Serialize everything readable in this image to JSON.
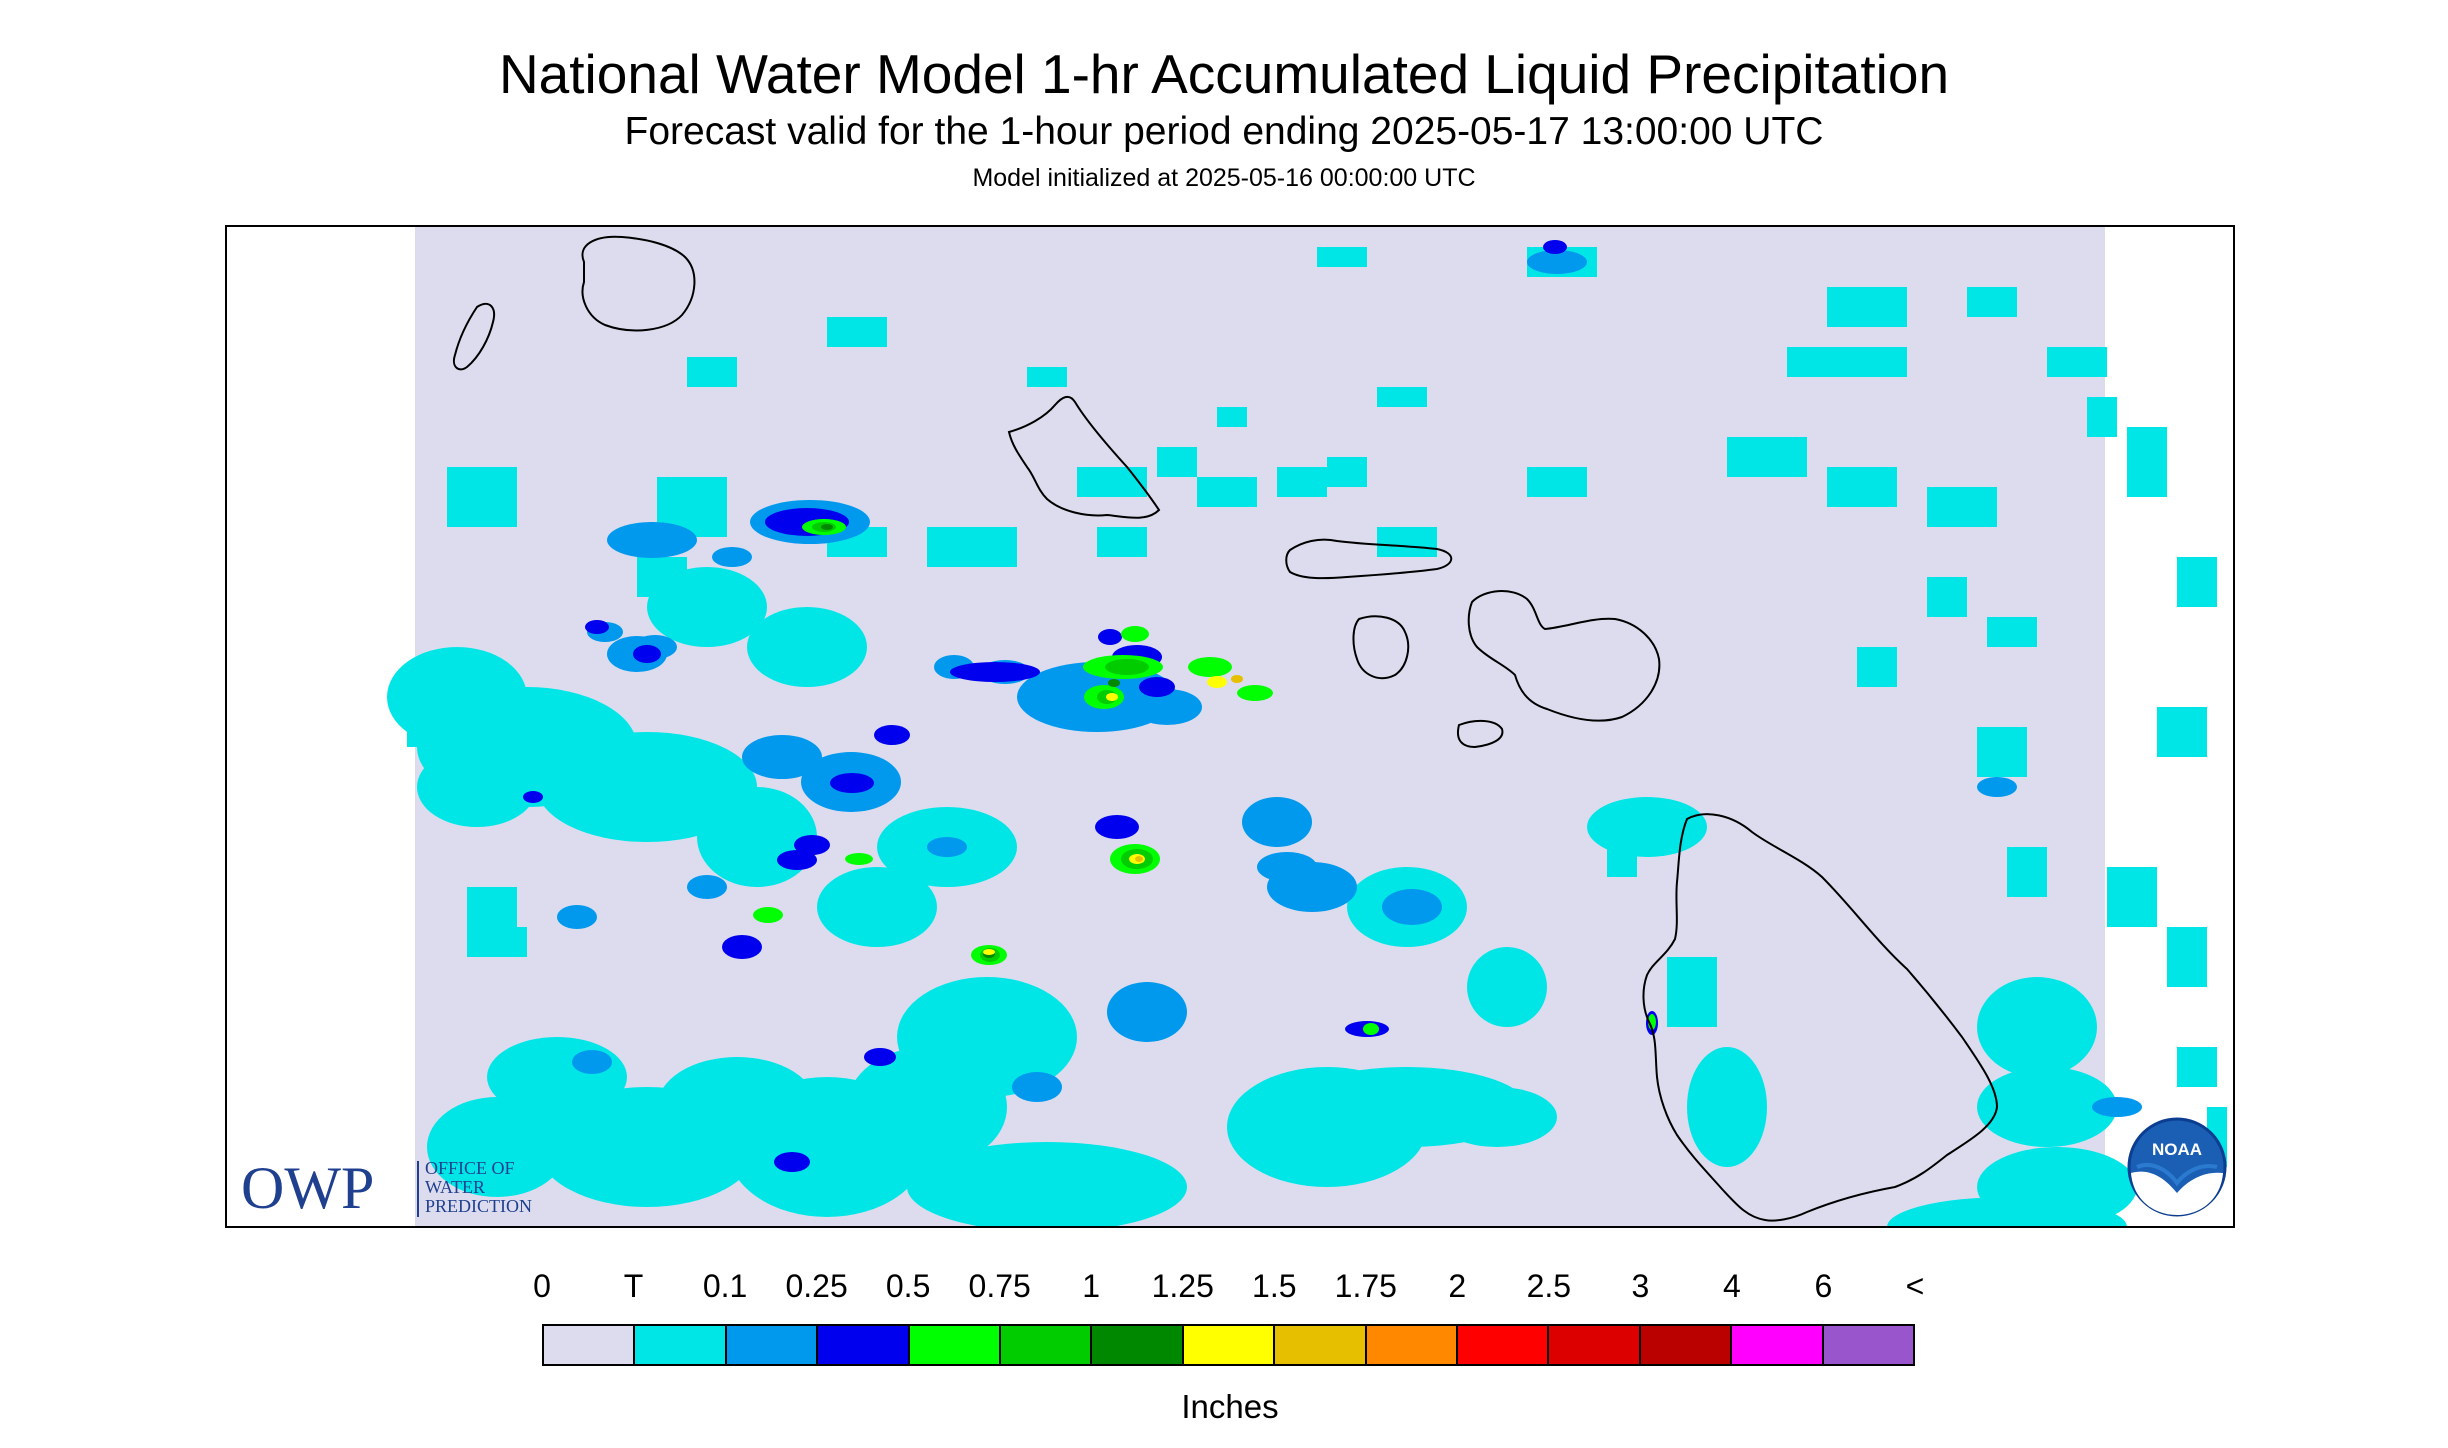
{
  "header": {
    "title": "National Water Model 1-hr Accumulated Liquid Precipitation",
    "subtitle": "Forecast valid for the 1-hour period ending 2025-05-17 13:00:00 UTC",
    "init": "Model initialized at 2025-05-16 00:00:00 UTC"
  },
  "map": {
    "background_color": "#dcdcee",
    "coastline_color": "#000000",
    "icons": [
      "owp-logo-icon",
      "noaa-logo-icon"
    ]
  },
  "logos": {
    "owp_text": "OWP",
    "owp_line1": "OFFICE OF",
    "owp_line2": "WATER",
    "owp_line3": "PREDICTION",
    "noaa_text": "NOAA"
  },
  "legend": {
    "labels": [
      "0",
      "T",
      "0.1",
      "0.25",
      "0.5",
      "0.75",
      "1",
      "1.25",
      "1.5",
      "1.75",
      "2",
      "2.5",
      "3",
      "4",
      "6",
      "<"
    ],
    "colors": [
      "#dcdcee",
      "#00e6e6",
      "#0099ee",
      "#0000ee",
      "#00ff00",
      "#00cc00",
      "#008800",
      "#ffff00",
      "#e6c000",
      "#ff8800",
      "#ff0000",
      "#dd0000",
      "#bb0000",
      "#ff00ff",
      "#9955cc"
    ],
    "units": "Inches"
  }
}
